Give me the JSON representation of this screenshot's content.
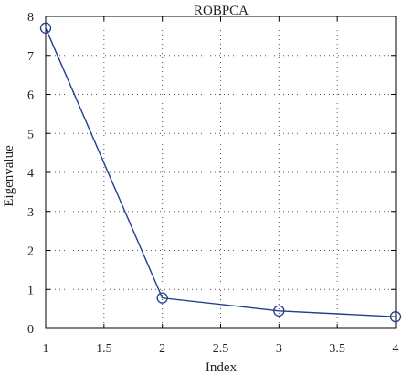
{
  "chart_data": {
    "type": "line",
    "title": "ROBPCA",
    "xlabel": "Index",
    "ylabel": "Eigenvalue",
    "xlim": [
      1,
      4
    ],
    "ylim": [
      0,
      8
    ],
    "xticks": [
      "1",
      "1.5",
      "2",
      "2.5",
      "3",
      "3.5",
      "4"
    ],
    "yticks": [
      "0",
      "1",
      "2",
      "3",
      "4",
      "5",
      "6",
      "7",
      "8"
    ],
    "grid": true,
    "series": [
      {
        "x": [
          1,
          2,
          3,
          4
        ],
        "y": [
          7.7,
          0.78,
          0.45,
          0.3
        ],
        "marker": "open-circle",
        "color": "#1f3f8f"
      }
    ]
  }
}
